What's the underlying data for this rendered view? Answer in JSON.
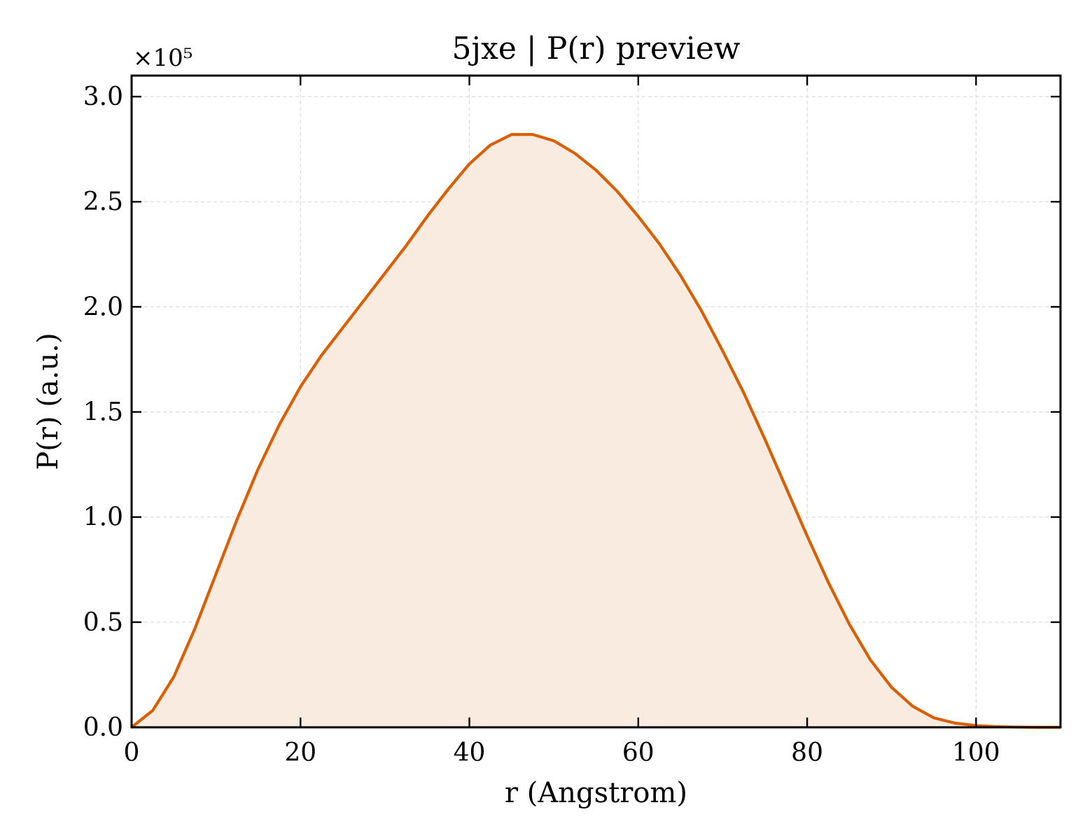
{
  "chart_data": {
    "type": "area",
    "title": "5jxe | P(r) preview",
    "xlabel": "r (Angstrom)",
    "ylabel": "P(r) (a.u.)",
    "y_scale_note": "×10⁵",
    "xlim": [
      0,
      110
    ],
    "ylim": [
      0,
      3.1
    ],
    "x_ticks": [
      0,
      20,
      40,
      60,
      80,
      100
    ],
    "x_tick_labels": [
      "0",
      "20",
      "40",
      "60",
      "80",
      "100"
    ],
    "y_ticks": [
      0,
      0.5,
      1.0,
      1.5,
      2.0,
      2.5,
      3.0
    ],
    "y_tick_labels": [
      "0.0",
      "0.5",
      "1.0",
      "1.5",
      "2.0",
      "2.5",
      "3.0"
    ],
    "grid": true,
    "line_color": "#d95f02",
    "fill_color": "#f9ebe0",
    "series": [
      {
        "x": [
          0,
          2.5,
          5,
          7.5,
          10,
          12.5,
          15,
          17.5,
          20,
          22.5,
          25,
          27.5,
          30,
          32.5,
          35,
          37.5,
          40,
          42.5,
          45,
          47.5,
          50,
          52.5,
          55,
          57.5,
          60,
          62.5,
          65,
          67.5,
          70,
          72.5,
          75,
          77.5,
          80,
          82.5,
          85,
          87.5,
          90,
          92.5,
          95,
          97.5,
          100,
          102.5,
          105,
          107.5,
          110
        ],
        "y": [
          0.0,
          0.08,
          0.24,
          0.47,
          0.73,
          0.99,
          1.23,
          1.44,
          1.62,
          1.77,
          1.9,
          2.03,
          2.16,
          2.29,
          2.43,
          2.56,
          2.68,
          2.77,
          2.82,
          2.82,
          2.79,
          2.73,
          2.65,
          2.55,
          2.43,
          2.3,
          2.15,
          1.98,
          1.79,
          1.59,
          1.37,
          1.14,
          0.91,
          0.69,
          0.49,
          0.32,
          0.19,
          0.1,
          0.045,
          0.02,
          0.008,
          0.003,
          0.001,
          0.0,
          0.0
        ]
      }
    ]
  }
}
